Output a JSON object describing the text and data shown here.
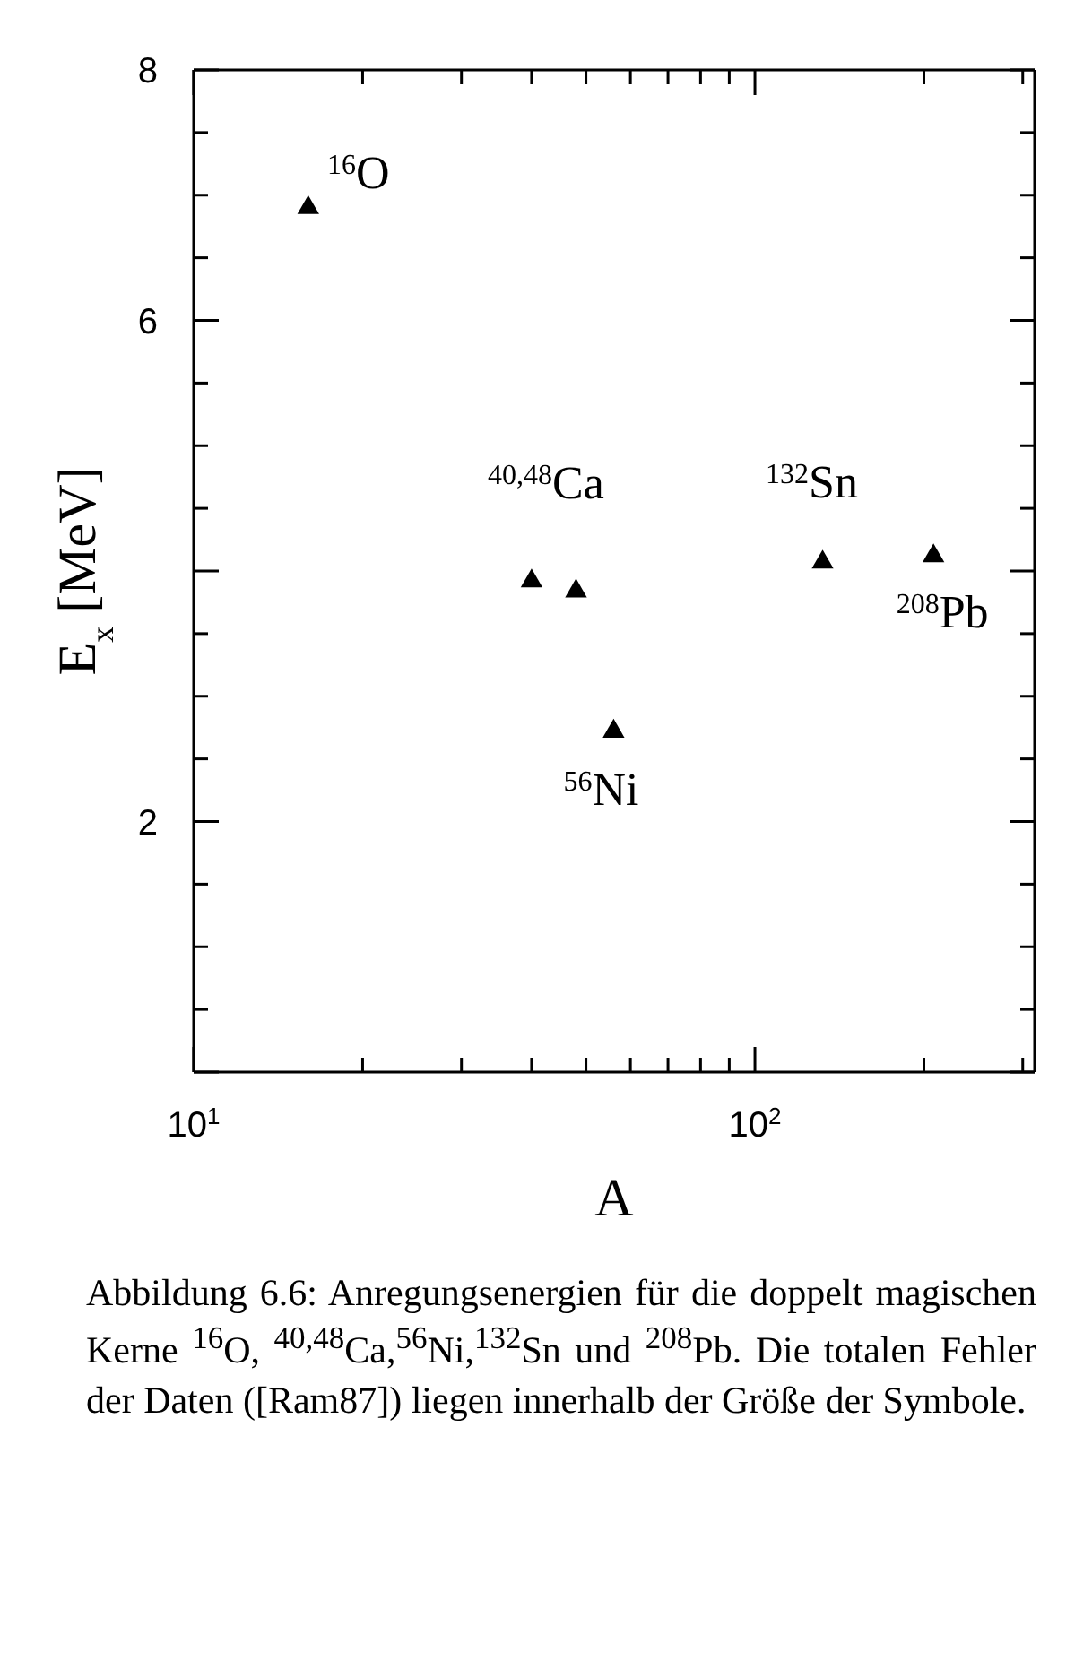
{
  "chart_data": {
    "type": "scatter",
    "xlabel": "A",
    "ylabel": "E$_{x}$ [MeV]",
    "log": "x",
    "marker": "triangle",
    "xlim": [
      10,
      315
    ],
    "ylim": [
      0,
      8
    ],
    "xticks": [
      {
        "value": 10,
        "label": "10$^{1}$"
      },
      {
        "value": 20,
        "label": null
      },
      {
        "value": 30,
        "label": null
      },
      {
        "value": 40,
        "label": null
      },
      {
        "value": 50,
        "label": null
      },
      {
        "value": 60,
        "label": null
      },
      {
        "value": 70,
        "label": null
      },
      {
        "value": 80,
        "label": null
      },
      {
        "value": 90,
        "label": null
      },
      {
        "value": 100,
        "label": "10$^{2}$"
      },
      {
        "value": 200,
        "label": null
      },
      {
        "value": 300,
        "label": null
      }
    ],
    "yticks": [
      {
        "value": 0,
        "label": null
      },
      {
        "value": 0.5,
        "label": null
      },
      {
        "value": 1,
        "label": null
      },
      {
        "value": 1.5,
        "label": null
      },
      2,
      {
        "value": 2.5,
        "label": null
      },
      {
        "value": 3,
        "label": null
      },
      {
        "value": 3.5,
        "label": null
      },
      {
        "value": 4,
        "label": null
      },
      {
        "value": 4.5,
        "label": null
      },
      {
        "value": 5,
        "label": null
      },
      {
        "value": 5.5,
        "label": null
      },
      6,
      {
        "value": 6.5,
        "label": null
      },
      {
        "value": 7,
        "label": null
      },
      {
        "value": 7.5,
        "label": null
      },
      8
    ],
    "x": [
      16,
      40,
      48,
      56,
      132,
      208
    ],
    "series": [
      {
        "color": "#000000",
        "values": [
          6.9,
          3.92,
          3.84,
          2.72,
          4.07,
          4.12
        ]
      }
    ],
    "annotations": [
      {
        "text": "$^{16}$O",
        "x": 16,
        "y": 6.9
      },
      {
        "text": "$^{40,48}$Ca",
        "x": 40,
        "y": 3.92
      },
      {
        "text": "$^{56}$Ni",
        "x": 56,
        "y": 2.72
      },
      {
        "text": "$^{132}$Sn",
        "x": 132,
        "y": 4.07
      },
      {
        "text": "$^{208}$Pb",
        "x": 208,
        "y": 4.12
      },
      "Abbildung 6.6: Anregungsenergien für die doppelt magischen Kerne $^{16}$O, $^{40,48}$Ca,$^{56}$Ni,$^{132}$Sn und $^{208}$Pb. Die totalen Fehler der Daten ([Ram87]) liegen innerhalb der Größe der Symbole."
    ]
  }
}
